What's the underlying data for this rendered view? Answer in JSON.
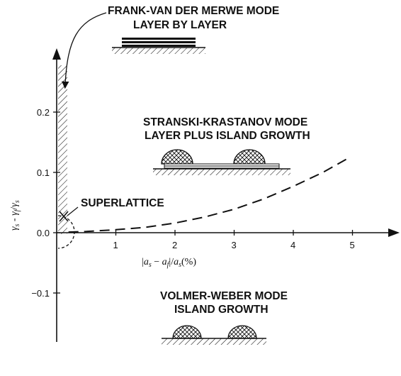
{
  "modes": {
    "fvdm": {
      "title": "FRANK-VAN DER MERWE MODE",
      "subtitle": "LAYER BY LAYER"
    },
    "sk": {
      "title": "STRANSKI-KRASTANOV MODE",
      "subtitle": "LAYER PLUS ISLAND GROWTH"
    },
    "vw": {
      "title": "VOLMER-WEBER MODE",
      "subtitle": "ISLAND GROWTH"
    }
  },
  "superlattice": {
    "label": "SUPERLATTICE"
  },
  "axes": {
    "x_label": {
      "bar1": "|",
      "a1": "a",
      "s1": "s",
      "minus": " − ",
      "a2": "a",
      "f": "f",
      "bar2": "|",
      "slash": "/",
      "a3": "a",
      "s2": "s",
      "pct": "(%)"
    },
    "y_label": {
      "g1": "γ",
      "s1": "s",
      "minus": " - ",
      "g2": "γ",
      "f": "f",
      "slash": "/",
      "g3": "γ",
      "s2": "s"
    },
    "x_ticks": [
      "1",
      "2",
      "3",
      "4",
      "5"
    ],
    "y_ticks": [
      "0.2",
      "0.1",
      "0.0",
      "−0.1"
    ]
  },
  "chart_data": {
    "type": "line",
    "xlim": [
      0,
      5.5
    ],
    "ylim": [
      -0.15,
      0.27
    ],
    "series": [
      {
        "style": "dashed",
        "x": [
          0.2,
          0.5,
          1,
          1.5,
          2,
          2.5,
          3,
          3.5,
          4,
          4.5,
          4.9
        ],
        "y": [
          0.001,
          0.002,
          0.005,
          0.009,
          0.016,
          0.026,
          0.039,
          0.056,
          0.077,
          0.1,
          0.122
        ]
      }
    ]
  },
  "colors": {
    "ink": "#111111"
  }
}
